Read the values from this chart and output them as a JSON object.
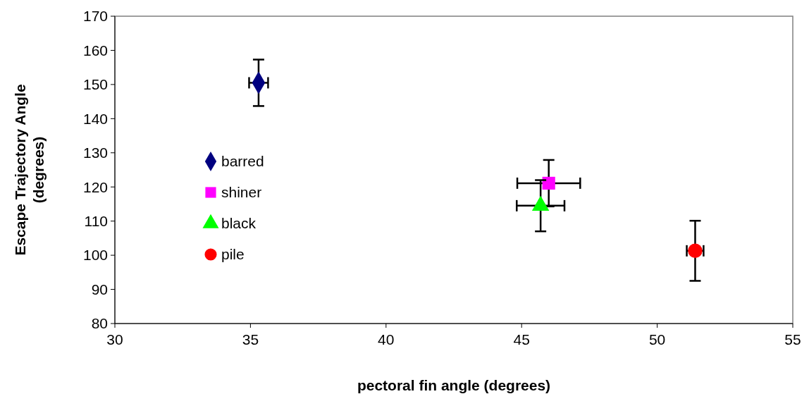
{
  "chart_data": {
    "type": "scatter",
    "xlabel": "pectoral fin angle (degrees)",
    "ylabel": "Escape Trajectory Angle (degrees)",
    "xlim": [
      30,
      55
    ],
    "xticks": [
      30,
      35,
      40,
      45,
      50,
      55
    ],
    "ylim": [
      80,
      170
    ],
    "yticks": [
      80,
      90,
      100,
      110,
      120,
      130,
      140,
      150,
      160,
      170
    ],
    "legend": "left",
    "series": [
      {
        "name": "barred",
        "color": "#000080",
        "marker": "diamond",
        "x": [
          35.3
        ],
        "values": [
          150.5
        ],
        "errors": [
          6.8
        ],
        "xerrors": [
          0.35
        ]
      },
      {
        "name": "shiner",
        "color": "#ff00ff",
        "marker": "square",
        "x": [
          46.0
        ],
        "values": [
          121.1
        ],
        "errors": [
          6.8
        ],
        "xerrors": [
          1.16
        ]
      },
      {
        "name": "black",
        "color": "#00ff00",
        "marker": "triangle",
        "x": [
          45.7
        ],
        "values": [
          114.5
        ],
        "errors": [
          7.5
        ],
        "xerrors": [
          0.88
        ]
      },
      {
        "name": "pile",
        "color": "#ff0000",
        "marker": "circle",
        "x": [
          51.4
        ],
        "values": [
          101.3
        ],
        "errors": [
          8.8
        ],
        "xerrors": [
          0.31
        ]
      }
    ]
  }
}
